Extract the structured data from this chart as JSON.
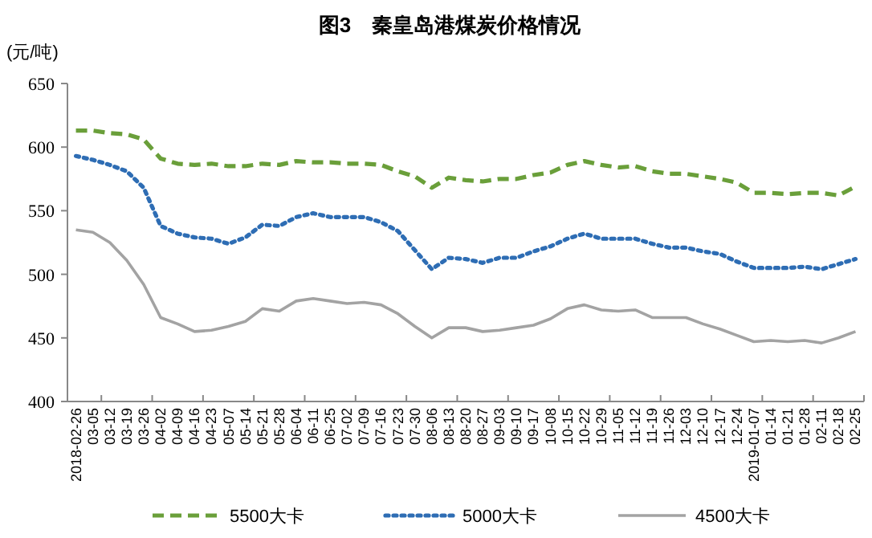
{
  "chart_data": {
    "type": "line",
    "title": "图3　秦皇岛港煤炭价格情况",
    "ylabel": "(元/吨)",
    "categories": [
      "2018-02-26",
      "03-05",
      "03-12",
      "03-19",
      "03-26",
      "04-02",
      "04-09",
      "04-16",
      "04-23",
      "05-07",
      "05-14",
      "05-21",
      "05-28",
      "06-04",
      "06-11",
      "06-25",
      "07-02",
      "07-09",
      "07-16",
      "07-23",
      "07-30",
      "08-06",
      "08-13",
      "08-20",
      "08-27",
      "09-03",
      "09-10",
      "09-17",
      "10-08",
      "10-15",
      "10-22",
      "10-29",
      "11-05",
      "11-12",
      "11-19",
      "11-26",
      "12-03",
      "12-10",
      "12-17",
      "12-24",
      "2019-01-07",
      "01-14",
      "01-21",
      "01-28",
      "02-11",
      "02-18",
      "02-25"
    ],
    "ylim": [
      400,
      650
    ],
    "yticks": [
      400,
      450,
      500,
      550,
      600,
      650
    ],
    "legend": "bottom",
    "series": [
      {
        "name": "5500大卡",
        "color": "#6a9f3a",
        "line_style": "dashed",
        "values": [
          613,
          613,
          611,
          610,
          606,
          591,
          587,
          586,
          587,
          585,
          585,
          587,
          586,
          589,
          588,
          588,
          587,
          587,
          586,
          581,
          577,
          568,
          576,
          574,
          573,
          575,
          575,
          578,
          580,
          586,
          589,
          586,
          584,
          585,
          581,
          579,
          579,
          577,
          575,
          572,
          564,
          564,
          563,
          564,
          564,
          562,
          569
        ]
      },
      {
        "name": "5000大卡",
        "color": "#2e6db4",
        "line_style": "dotted",
        "values": [
          593,
          590,
          586,
          581,
          568,
          538,
          532,
          529,
          528,
          524,
          529,
          539,
          538,
          545,
          548,
          545,
          545,
          545,
          541,
          534,
          519,
          504,
          513,
          512,
          509,
          513,
          513,
          518,
          522,
          528,
          532,
          528,
          528,
          528,
          524,
          521,
          521,
          518,
          516,
          510,
          505,
          505,
          505,
          506,
          504,
          508,
          512
        ]
      },
      {
        "name": "4500大卡",
        "color": "#a3a3a3",
        "line_style": "solid",
        "values": [
          535,
          533,
          525,
          511,
          492,
          466,
          461,
          455,
          456,
          459,
          463,
          473,
          471,
          479,
          481,
          479,
          477,
          478,
          476,
          469,
          459,
          450,
          458,
          458,
          455,
          456,
          458,
          460,
          465,
          473,
          476,
          472,
          471,
          472,
          466,
          466,
          466,
          461,
          457,
          452,
          447,
          448,
          447,
          448,
          446,
          450,
          455
        ]
      }
    ]
  }
}
